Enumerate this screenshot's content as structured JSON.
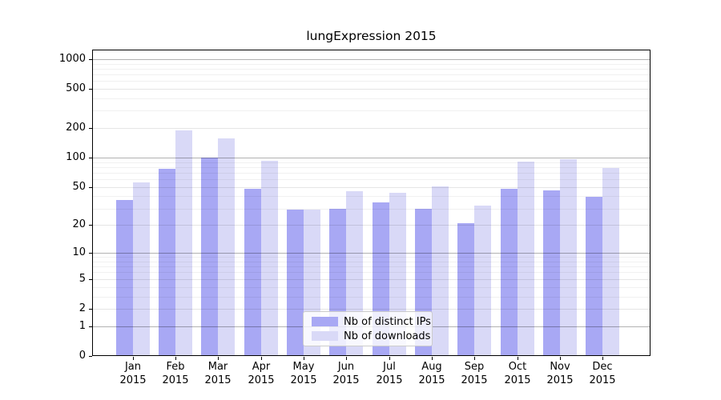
{
  "title": "lungExpression 2015",
  "chart_data": {
    "type": "bar",
    "title": "lungExpression 2015",
    "categories": [
      "Jan",
      "Feb",
      "Mar",
      "Apr",
      "May",
      "Jun",
      "Jul",
      "Aug",
      "Sep",
      "Oct",
      "Nov",
      "Dec"
    ],
    "x_tick_year": "2015",
    "series": [
      {
        "name": "Nb of distinct IPs",
        "color": "#a8a8f4",
        "values": [
          37,
          77,
          100,
          48,
          29,
          30,
          35,
          30,
          21,
          48,
          46,
          40
        ]
      },
      {
        "name": "Nb of downloads",
        "color": "#d9d9f7",
        "values": [
          56,
          190,
          158,
          93,
          29,
          45,
          44,
          51,
          32,
          92,
          96,
          78
        ]
      }
    ],
    "y_axis": {
      "scale": "log1p",
      "ticks": [
        1000,
        500,
        200,
        100,
        50,
        20,
        10,
        5,
        2,
        1,
        0
      ],
      "major_gridlines": [
        1,
        10,
        100,
        1000
      ],
      "minor_labeled_gridlines": [
        2,
        5,
        20,
        50,
        200,
        500
      ],
      "range": [
        0,
        1000
      ]
    },
    "legend": {
      "position": "bottom-center",
      "entries": [
        "Nb of distinct IPs",
        "Nb of downloads"
      ]
    },
    "grid": true
  },
  "colors": {
    "bar_distinct_ips": "#a8a8f4",
    "bar_downloads": "#d9d9f7",
    "axis": "#000000",
    "background": "#ffffff"
  }
}
